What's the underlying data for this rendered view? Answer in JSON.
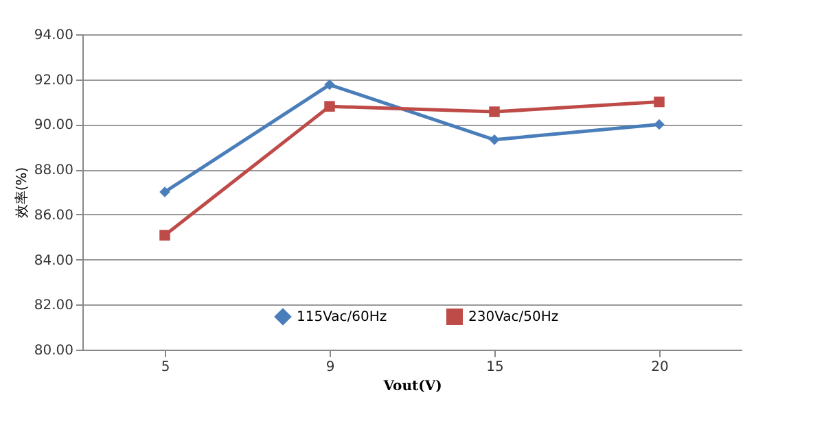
{
  "chart_data": {
    "type": "line",
    "xlabel": "Vout(V)",
    "ylabel": "效率(%)",
    "categories": [
      "5",
      "9",
      "15",
      "20"
    ],
    "series": [
      {
        "name": "115Vac/60Hz",
        "color": "#4a7ebb",
        "values": [
          87.0,
          91.76,
          89.32,
          90.0
        ],
        "marker": "diamond"
      },
      {
        "name": "230Vac/50Hz",
        "color": "#be4b48",
        "values": [
          85.08,
          90.8,
          90.56,
          91.0
        ],
        "marker": "square"
      }
    ],
    "ylim": [
      80,
      94
    ],
    "yticks": [
      {
        "value": 80,
        "label": "80.00"
      },
      {
        "value": 82,
        "label": "82.00"
      },
      {
        "value": 84,
        "label": "84.00"
      },
      {
        "value": 86,
        "label": "86.00"
      },
      {
        "value": 88,
        "label": "88.00"
      },
      {
        "value": 90,
        "label": "90.00"
      },
      {
        "value": 92,
        "label": "92.00"
      },
      {
        "value": 94,
        "label": "94.00"
      }
    ],
    "grid": "y",
    "legend": "bottom",
    "line_style": "solid"
  }
}
